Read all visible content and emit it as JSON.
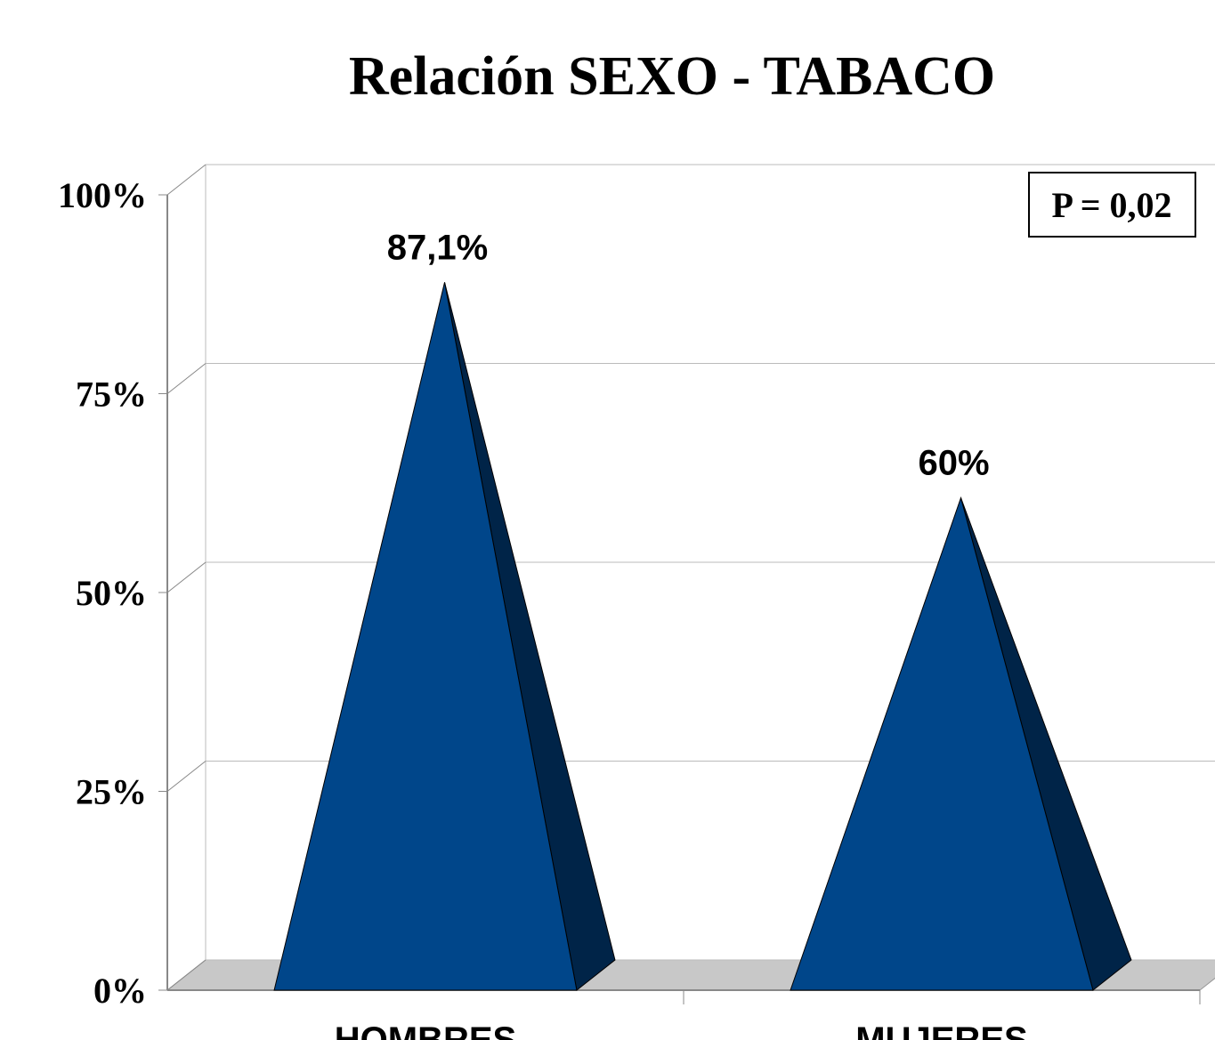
{
  "chart_data": {
    "type": "pyramid",
    "title": "Relación  SEXO - TABACO",
    "categories": [
      "HOMBRES",
      "MUJERES"
    ],
    "values": [
      87.1,
      60
    ],
    "value_labels": [
      "87,1%",
      "60%"
    ],
    "color": "#00468a",
    "side_color": "#002448",
    "ylim": [
      0,
      100
    ],
    "yticks": [
      {
        "value": 0,
        "label": "0%"
      },
      {
        "value": 25,
        "label": "25%"
      },
      {
        "value": 50,
        "label": "50%"
      },
      {
        "value": 75,
        "label": "75%"
      },
      {
        "value": 100,
        "label": "100%"
      }
    ],
    "grid": true,
    "annotation": "P = 0,02"
  }
}
